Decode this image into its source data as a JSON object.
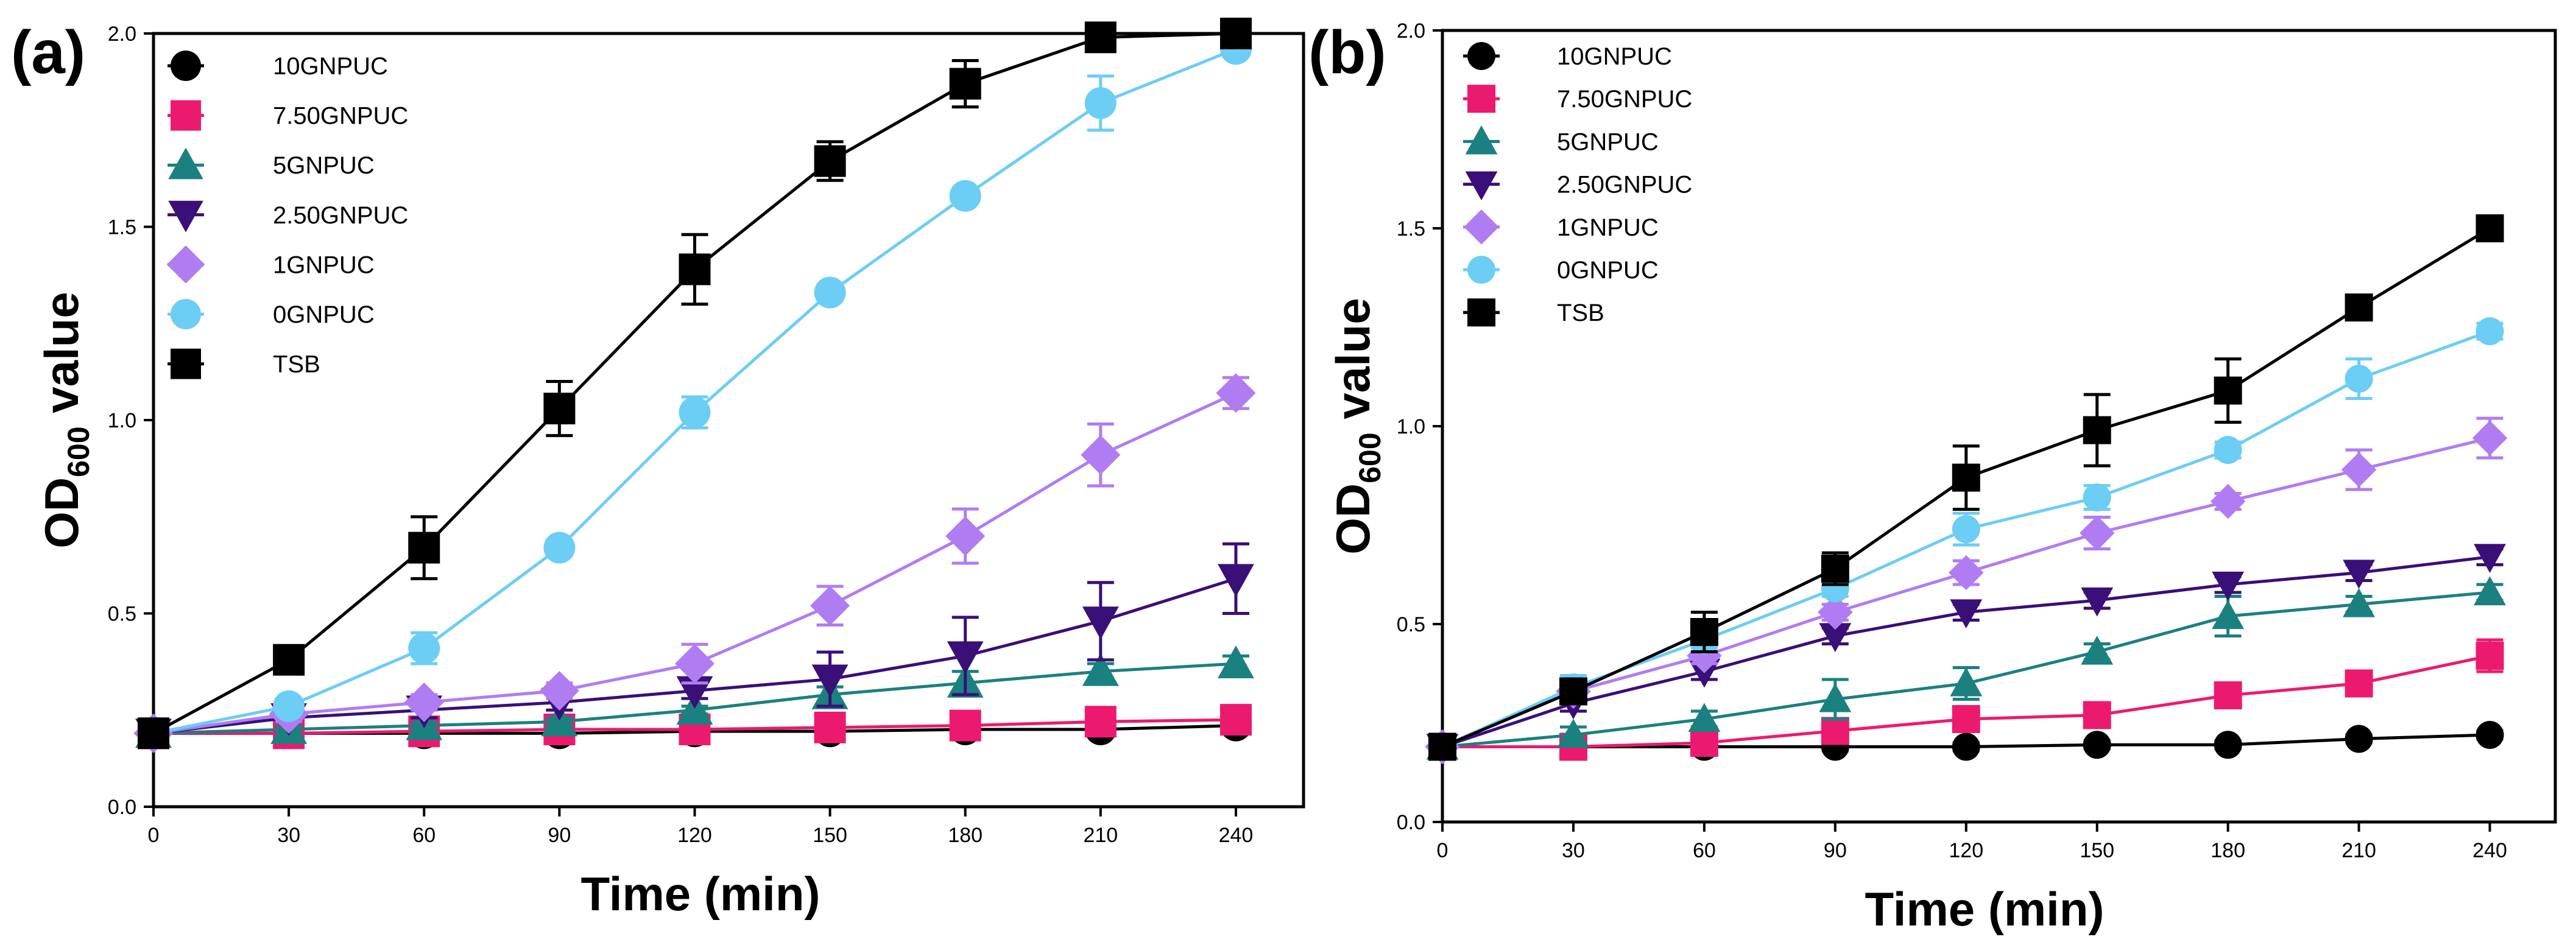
{
  "colors": {
    "10GNPUC": "#000000",
    "7.50GNPUC": "#ec1a6e",
    "5GNPUC": "#1b8080",
    "2.50GNPUC": "#3a0f78",
    "1GNPUC": "#b07cf2",
    "0GNPUC": "#6ccdf5",
    "TSB": "#000000"
  },
  "markers": {
    "10GNPUC": "circle",
    "7.50GNPUC": "square",
    "5GNPUC": "triangle-up",
    "2.50GNPUC": "triangle-down",
    "1GNPUC": "diamond",
    "0GNPUC": "circle",
    "TSB": "square"
  },
  "y_sub": "600",
  "chart_data": [
    {
      "panel": "(a)",
      "type": "line",
      "xlabel": "Time (min)",
      "ylabel": "OD600 value",
      "ylabel_main": "OD",
      "ylabel_rest": " value",
      "x": [
        0,
        30,
        60,
        90,
        120,
        150,
        180,
        210,
        240
      ],
      "xlim": [
        0,
        255
      ],
      "ylim": [
        0,
        2.0
      ],
      "xticks": [
        "0",
        "30",
        "60",
        "90",
        "120",
        "150",
        "180",
        "210",
        "240"
      ],
      "yticks": [
        "0.0",
        "0.5",
        "1.0",
        "1.5",
        "2.0"
      ],
      "legend_position": "top-left",
      "series": [
        {
          "name": "10GNPUC",
          "values": [
            0.19,
            0.19,
            0.19,
            0.19,
            0.195,
            0.195,
            0.2,
            0.2,
            0.21
          ],
          "errors": [
            0.01,
            0.01,
            0.01,
            0.01,
            0.01,
            0.01,
            0.01,
            0.01,
            0.01
          ]
        },
        {
          "name": "7.50GNPUC",
          "values": [
            0.19,
            0.19,
            0.195,
            0.2,
            0.2,
            0.205,
            0.21,
            0.22,
            0.225
          ],
          "errors": [
            0.01,
            0.01,
            0.01,
            0.01,
            0.01,
            0.01,
            0.01,
            0.01,
            0.01
          ]
        },
        {
          "name": "5GNPUC",
          "values": [
            0.19,
            0.2,
            0.21,
            0.22,
            0.25,
            0.29,
            0.32,
            0.35,
            0.37
          ],
          "errors": [
            0.01,
            0.01,
            0.01,
            0.01,
            0.01,
            0.02,
            0.03,
            0.02,
            0.02
          ]
        },
        {
          "name": "2.50GNPUC",
          "values": [
            0.19,
            0.23,
            0.25,
            0.27,
            0.3,
            0.33,
            0.39,
            0.48,
            0.59
          ],
          "errors": [
            0.01,
            0.01,
            0.02,
            0.02,
            0.02,
            0.07,
            0.1,
            0.1,
            0.09
          ]
        },
        {
          "name": "1GNPUC",
          "values": [
            0.19,
            0.24,
            0.27,
            0.3,
            0.37,
            0.52,
            0.7,
            0.91,
            1.07
          ],
          "errors": [
            0.01,
            0.02,
            0.02,
            0.02,
            0.05,
            0.05,
            0.07,
            0.08,
            0.04
          ]
        },
        {
          "name": "0GNPUC",
          "values": [
            0.19,
            0.26,
            0.41,
            0.67,
            1.02,
            1.33,
            1.58,
            1.82,
            1.96
          ],
          "errors": [
            0.01,
            0.02,
            0.04,
            0.02,
            0.04,
            0.02,
            0.02,
            0.07,
            0.02
          ]
        },
        {
          "name": "TSB",
          "values": [
            0.19,
            0.38,
            0.67,
            1.03,
            1.39,
            1.67,
            1.87,
            1.99,
            2.0
          ],
          "errors": [
            0.01,
            0.03,
            0.08,
            0.07,
            0.09,
            0.05,
            0.06,
            0.02,
            0.01
          ]
        }
      ]
    },
    {
      "panel": "(b)",
      "type": "line",
      "xlabel": "Time (min)",
      "ylabel": "OD600 value",
      "ylabel_main": "OD",
      "ylabel_rest": " value",
      "x": [
        0,
        30,
        60,
        90,
        120,
        150,
        180,
        210,
        240
      ],
      "xlim": [
        0,
        255
      ],
      "ylim": [
        0,
        2.0
      ],
      "xticks": [
        "0",
        "30",
        "60",
        "90",
        "120",
        "150",
        "180",
        "210",
        "240"
      ],
      "yticks": [
        "0.0",
        "0.5",
        "1.0",
        "1.5",
        "2.0"
      ],
      "legend_position": "top-left",
      "series": [
        {
          "name": "10GNPUC",
          "values": [
            0.19,
            0.19,
            0.19,
            0.19,
            0.19,
            0.195,
            0.195,
            0.21,
            0.22
          ],
          "errors": [
            0.01,
            0.01,
            0.01,
            0.01,
            0.01,
            0.01,
            0.01,
            0.01,
            0.01
          ]
        },
        {
          "name": "7.50GNPUC",
          "values": [
            0.19,
            0.19,
            0.2,
            0.23,
            0.26,
            0.27,
            0.32,
            0.35,
            0.42
          ],
          "errors": [
            0.01,
            0.01,
            0.01,
            0.02,
            0.02,
            0.02,
            0.02,
            0.02,
            0.04
          ]
        },
        {
          "name": "5GNPUC",
          "values": [
            0.19,
            0.22,
            0.26,
            0.31,
            0.35,
            0.43,
            0.52,
            0.55,
            0.58
          ],
          "errors": [
            0.01,
            0.02,
            0.02,
            0.05,
            0.04,
            0.02,
            0.05,
            0.02,
            0.02
          ]
        },
        {
          "name": "2.50GNPUC",
          "values": [
            0.19,
            0.3,
            0.38,
            0.47,
            0.53,
            0.56,
            0.6,
            0.63,
            0.67
          ],
          "errors": [
            0.01,
            0.02,
            0.02,
            0.02,
            0.02,
            0.02,
            0.02,
            0.02,
            0.02
          ]
        },
        {
          "name": "1GNPUC",
          "values": [
            0.19,
            0.33,
            0.42,
            0.53,
            0.63,
            0.73,
            0.81,
            0.89,
            0.97
          ],
          "errors": [
            0.01,
            0.02,
            0.02,
            0.02,
            0.03,
            0.04,
            0.02,
            0.05,
            0.05
          ]
        },
        {
          "name": "0GNPUC",
          "values": [
            0.19,
            0.34,
            0.46,
            0.59,
            0.74,
            0.82,
            0.94,
            1.12,
            1.24
          ],
          "errors": [
            0.01,
            0.03,
            0.02,
            0.02,
            0.04,
            0.03,
            0.02,
            0.05,
            0.02
          ]
        },
        {
          "name": "TSB",
          "values": [
            0.19,
            0.33,
            0.48,
            0.64,
            0.87,
            0.99,
            1.09,
            1.3,
            1.5
          ],
          "errors": [
            0.01,
            0.03,
            0.05,
            0.04,
            0.08,
            0.09,
            0.08,
            0.02,
            0.02
          ]
        }
      ]
    }
  ]
}
